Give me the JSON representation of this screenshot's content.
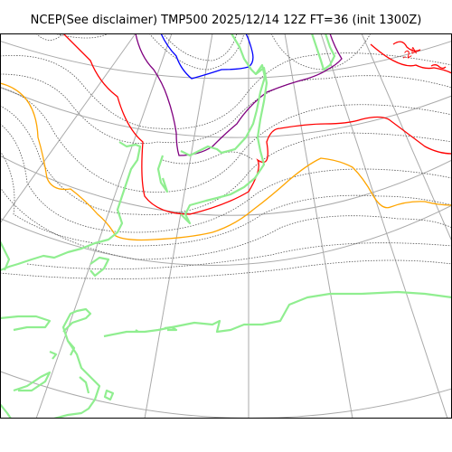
{
  "title": "NCEP(See disclaimer) TMP500 2025/12/14 12Z FT=36 (init 1300Z)",
  "contour_label": "-24",
  "colors": {
    "graticule": "#aaaaaa",
    "coastline": "#90ee90",
    "isotherm_dotted": "#555555",
    "isotherm_orange": "#ffa500",
    "isotherm_red": "#ff0000",
    "isotherm_purple": "#800080",
    "isotherm_blue": "#0000ff"
  }
}
